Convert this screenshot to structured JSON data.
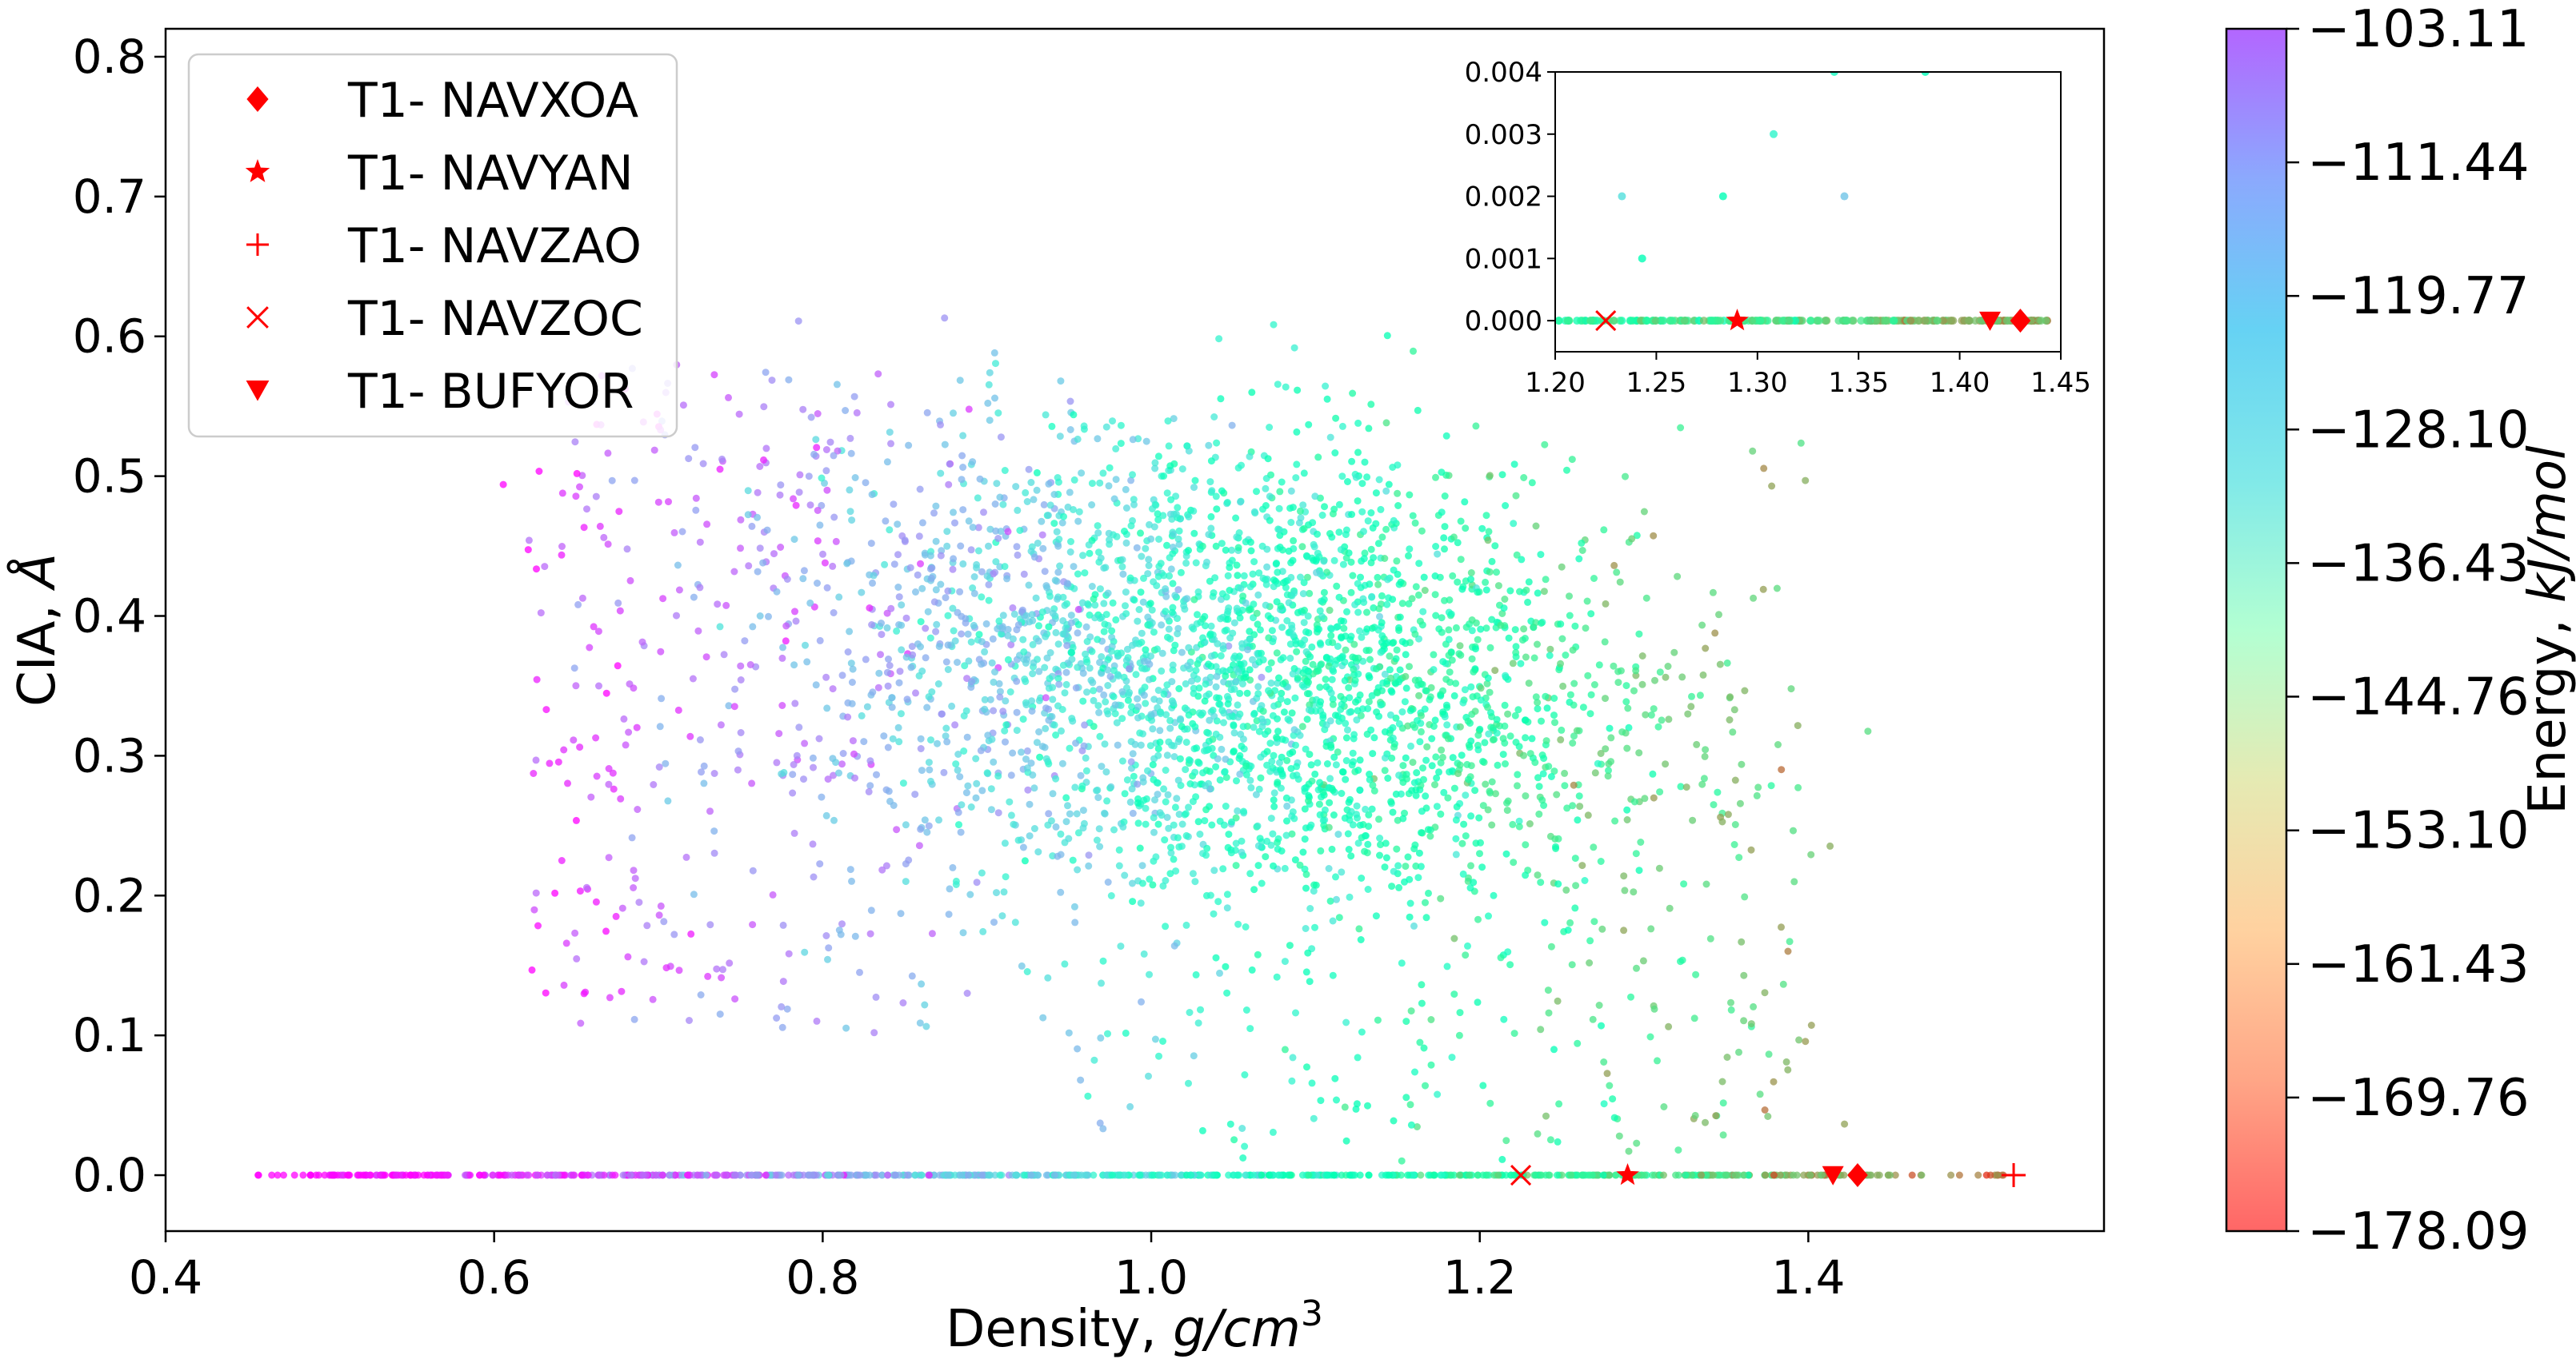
{
  "chart_data": [
    {
      "type": "scatter",
      "role": "main",
      "title": "",
      "xlabel": "Density, ",
      "xlabel_unit": "g/cm",
      "xlabel_exp": "3",
      "ylabel": "CIA, ",
      "ylabel_unit": "Å",
      "xlim": [
        0.4,
        1.58
      ],
      "ylim": [
        -0.04,
        0.82
      ],
      "xticks": [
        "0.4",
        "0.6",
        "0.8",
        "1.0",
        "1.2",
        "1.4"
      ],
      "xtick_values": [
        0.4,
        0.6,
        0.8,
        1.0,
        1.2,
        1.4
      ],
      "yticks": [
        "0.0",
        "0.1",
        "0.2",
        "0.3",
        "0.4",
        "0.5",
        "0.6",
        "0.7",
        "0.8"
      ],
      "ytick_values": [
        0.0,
        0.1,
        0.2,
        0.3,
        0.4,
        0.5,
        0.6,
        0.7,
        0.8
      ],
      "grid": false,
      "legend_position": "top-left",
      "background_points": {
        "description_count": 3500,
        "cluster_center": [
          1.05,
          0.37
        ],
        "zero_line_density_range": [
          0.45,
          1.52
        ],
        "color_by": "energy"
      },
      "highlighted_series": [
        {
          "name": "T1- NAVXOA",
          "marker": "diamond",
          "x": 1.43,
          "y": 0.0
        },
        {
          "name": "T1- NAVYAN",
          "marker": "star",
          "x": 1.29,
          "y": 0.0
        },
        {
          "name": "T1- NAVZAO",
          "marker": "plus",
          "x": 1.525,
          "y": 0.0
        },
        {
          "name": "T1- NAVZOC",
          "marker": "x",
          "x": 1.225,
          "y": 0.0
        },
        {
          "name": "T1- BUFYOR",
          "marker": "triangle-down",
          "x": 1.415,
          "y": 0.0
        }
      ]
    },
    {
      "type": "scatter",
      "role": "inset",
      "xlim": [
        1.2,
        1.45
      ],
      "ylim": [
        -0.0005,
        0.004
      ],
      "xticks": [
        "1.20",
        "1.25",
        "1.30",
        "1.35",
        "1.40",
        "1.45"
      ],
      "xtick_values": [
        1.2,
        1.25,
        1.3,
        1.35,
        1.4,
        1.45
      ],
      "yticks": [
        "0.000",
        "0.001",
        "0.002",
        "0.003",
        "0.004"
      ],
      "ytick_values": [
        0.0,
        0.001,
        0.002,
        0.003,
        0.004
      ],
      "points": [
        {
          "x": 1.233,
          "y": 0.002,
          "e": -128.5
        },
        {
          "x": 1.243,
          "y": 0.001,
          "e": -140.1
        },
        {
          "x": 1.283,
          "y": 0.002,
          "e": -140.5
        },
        {
          "x": 1.308,
          "y": 0.003,
          "e": -134.0
        },
        {
          "x": 1.343,
          "y": 0.002,
          "e": -124.0
        },
        {
          "x": 1.338,
          "y": 0.004,
          "e": -137.0
        },
        {
          "x": 1.383,
          "y": 0.004,
          "e": -140.0
        }
      ],
      "highlighted": [
        {
          "name": "T1- NAVXOA",
          "marker": "diamond",
          "x": 1.43,
          "y": 0.0
        },
        {
          "name": "T1- NAVYAN",
          "marker": "star",
          "x": 1.29,
          "y": 0.0
        },
        {
          "name": "T1- NAVZOC",
          "marker": "x",
          "x": 1.225,
          "y": 0.0
        },
        {
          "name": "T1- BUFYOR",
          "marker": "triangle-down",
          "x": 1.415,
          "y": 0.0
        }
      ]
    }
  ],
  "colorbar": {
    "label": "Energy, ",
    "label_unit": "kJ/mol",
    "min": -178.09,
    "max": -103.11,
    "ticks": [
      "−103.11",
      "−111.44",
      "−119.77",
      "−128.10",
      "−136.43",
      "−144.76",
      "−153.10",
      "−161.43",
      "−169.76",
      "−178.09"
    ],
    "tick_values": [
      -103.11,
      -111.44,
      -119.77,
      -128.1,
      -136.43,
      -144.76,
      -153.1,
      -161.43,
      -169.76,
      -178.09
    ],
    "colormap": "rainbow",
    "alpha": 0.6
  },
  "highlight_color": "#ff0000"
}
